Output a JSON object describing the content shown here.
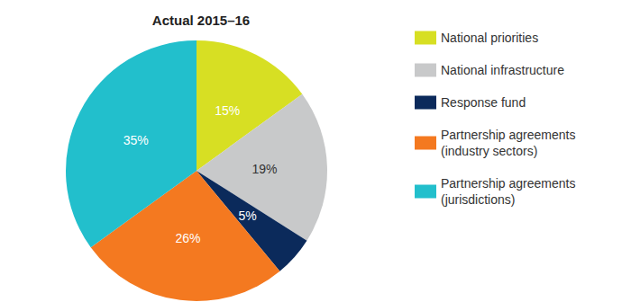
{
  "chart_data": {
    "type": "pie",
    "title": "Actual 2015–16",
    "categories": [
      "National priorities",
      "National infrastructure",
      "Response fund",
      "Partnership agreements (industry sectors)",
      "Partnership agreements (jurisdictions)"
    ],
    "values": [
      15,
      19,
      5,
      26,
      35
    ],
    "value_labels": [
      "15%",
      "19%",
      "5%",
      "26%",
      "35%"
    ],
    "colors": [
      "#d7df23",
      "#c8c9ca",
      "#0b2a5b",
      "#f47920",
      "#22bfcc"
    ],
    "data_labels": true,
    "legend": "right"
  }
}
